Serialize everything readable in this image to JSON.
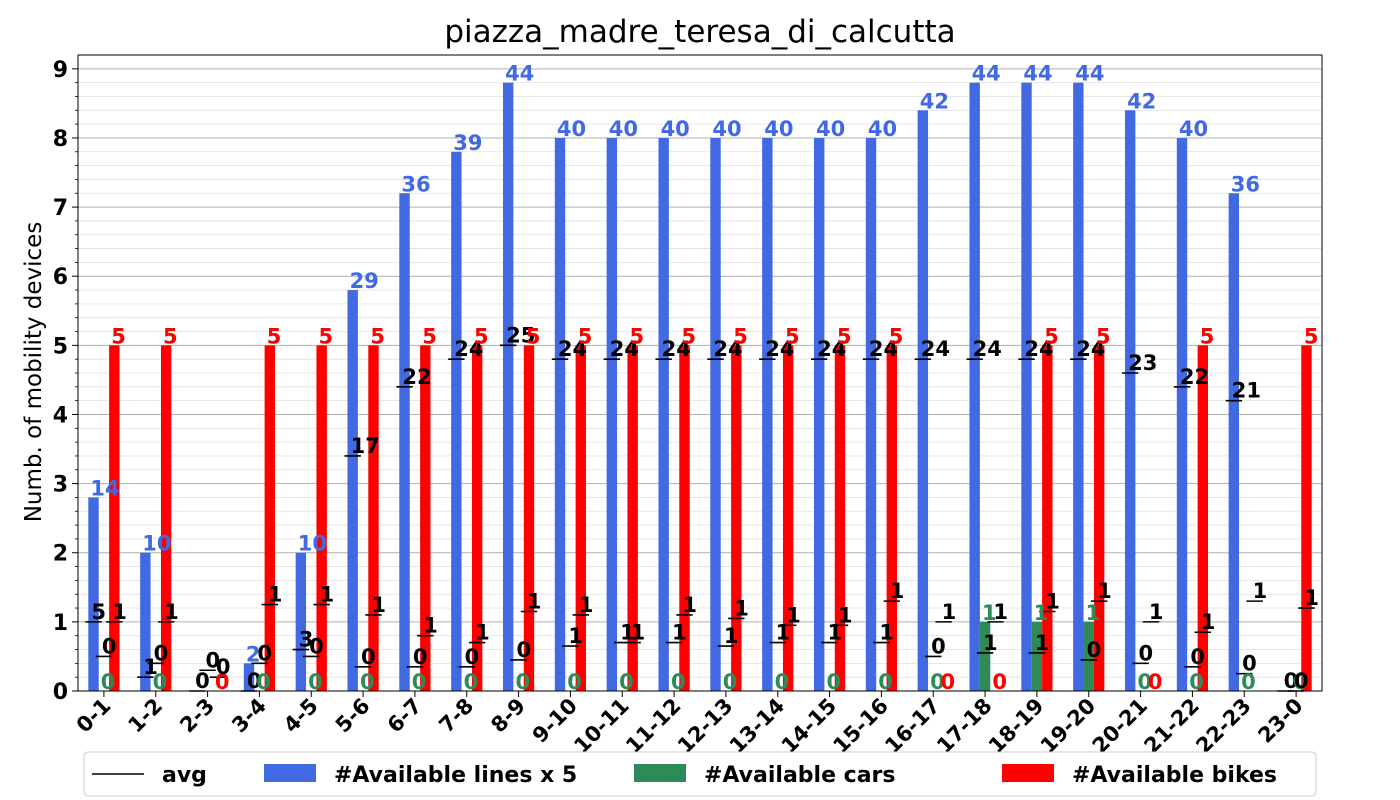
{
  "chart_data": {
    "type": "bar",
    "title": "piazza_madre_teresa_di_calcutta",
    "xlabel": "",
    "ylabel": "Numb. of mobility devices",
    "ylim": [
      0,
      9.2
    ],
    "yticks": [
      0,
      1,
      2,
      3,
      4,
      5,
      6,
      7,
      8,
      9
    ],
    "grid": true,
    "legend_position": "bottom",
    "categories": [
      "0-1",
      "1-2",
      "2-3",
      "3-4",
      "4-5",
      "5-6",
      "6-7",
      "7-8",
      "8-9",
      "9-10",
      "10-11",
      "11-12",
      "12-13",
      "13-14",
      "14-15",
      "15-16",
      "16-17",
      "17-18",
      "18-19",
      "19-20",
      "20-21",
      "21-22",
      "22-23",
      "23-0"
    ],
    "series": [
      {
        "name": "#Available lines x 5",
        "color": "#4169e1",
        "values": [
          2.8,
          2.0,
          0.0,
          0.4,
          2.0,
          5.8,
          7.2,
          7.8,
          8.8,
          8.0,
          8.0,
          8.0,
          8.0,
          8.0,
          8.0,
          8.0,
          8.4,
          8.8,
          8.8,
          8.8,
          8.4,
          8.0,
          7.2,
          0.0
        ],
        "labels": [
          "14",
          "10",
          "",
          "2",
          "10",
          "29",
          "36",
          "39",
          "44",
          "40",
          "40",
          "40",
          "40",
          "40",
          "40",
          "40",
          "42",
          "44",
          "44",
          "44",
          "42",
          "40",
          "36",
          ""
        ],
        "avg_values": [
          5.0,
          1.0,
          0.0,
          0.0,
          3.0,
          17.0,
          22.0,
          24.0,
          25.0,
          24.0,
          24.0,
          24.0,
          24.0,
          24.0,
          24.0,
          24.0,
          24.0,
          24.0,
          24.0,
          24.0,
          23.0,
          22.0,
          21.0,
          0.0
        ],
        "avg_labels": [
          "5",
          "1",
          "0",
          "0",
          "3",
          "17",
          "22",
          "24",
          "25",
          "24",
          "24",
          "24",
          "24",
          "24",
          "24",
          "24",
          "24",
          "24",
          "24",
          "24",
          "23",
          "22",
          "21",
          "0"
        ]
      },
      {
        "name": "#Available cars",
        "color": "#2e8b57",
        "values": [
          0,
          0,
          0,
          0,
          0,
          0,
          0,
          0,
          0,
          0,
          0,
          0,
          0,
          0,
          0,
          0,
          0,
          1,
          1,
          1,
          0,
          0,
          0,
          0
        ],
        "labels": [
          "0",
          "0",
          "",
          "0",
          "0",
          "0",
          "0",
          "0",
          "0",
          "0",
          "0",
          "0",
          "0",
          "0",
          "0",
          "0",
          "0",
          "1",
          "1",
          "1",
          "0",
          "0",
          "0",
          "0"
        ],
        "avg_values": [
          0.5,
          0.4,
          0.3,
          0.4,
          0.5,
          0.35,
          0.35,
          0.35,
          0.45,
          0.65,
          0.7,
          0.7,
          0.65,
          0.7,
          0.7,
          0.7,
          0.5,
          0.55,
          0.55,
          0.45,
          0.4,
          0.35,
          0.25,
          0.0
        ],
        "avg_labels": [
          "0",
          "0",
          "0",
          "0",
          "0",
          "0",
          "0",
          "0",
          "0",
          "1",
          "1",
          "1",
          "1",
          "1",
          "1",
          "1",
          "0",
          "1",
          "1",
          "0",
          "0",
          "0",
          "0",
          "0"
        ]
      },
      {
        "name": "#Available bikes",
        "color": "#ff0000",
        "values": [
          5,
          5,
          0,
          5,
          5,
          5,
          5,
          5,
          5,
          5,
          5,
          5,
          5,
          5,
          5,
          5,
          0,
          0,
          5,
          5,
          0,
          5,
          0,
          5
        ],
        "labels": [
          "5",
          "5",
          "0",
          "5",
          "5",
          "5",
          "5",
          "5",
          "5",
          "5",
          "5",
          "5",
          "5",
          "5",
          "5",
          "5",
          "0",
          "0",
          "5",
          "5",
          "0",
          "5",
          "",
          ""
        ],
        "avg_values": [
          1.0,
          1.0,
          0.2,
          1.25,
          1.25,
          1.1,
          0.8,
          0.7,
          1.15,
          1.1,
          0.7,
          1.1,
          1.05,
          0.95,
          0.95,
          1.3,
          1.0,
          1.0,
          1.15,
          1.3,
          1.0,
          0.85,
          1.3,
          1.2
        ],
        "avg_labels": [
          "1",
          "1",
          "0",
          "1",
          "1",
          "1",
          "1",
          "1",
          "1",
          "1",
          "1",
          "1",
          "1",
          "1",
          "1",
          "1",
          "1",
          "1",
          "1",
          "1",
          "1",
          "1",
          "1",
          "1"
        ]
      }
    ],
    "legend": [
      {
        "label": "avg",
        "kind": "line",
        "color": "#000000"
      },
      {
        "label": "#Available lines x 5",
        "kind": "patch",
        "color": "#4169e1"
      },
      {
        "label": "#Available cars",
        "kind": "patch",
        "color": "#2e8b57"
      },
      {
        "label": "#Available bikes",
        "kind": "patch",
        "color": "#ff0000"
      }
    ],
    "last_bike_label": "5"
  }
}
